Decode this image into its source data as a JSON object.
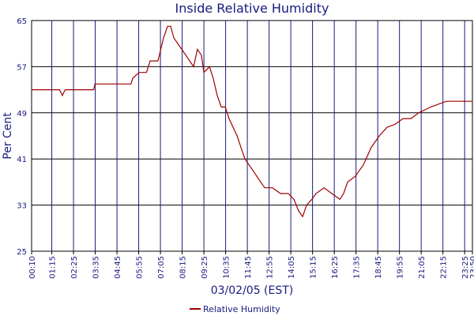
{
  "chart_data": {
    "type": "line",
    "title": "Inside Relative Humidity",
    "x_label": "03/02/05 (EST)",
    "y_label": "Per Cent",
    "x": [
      10,
      100,
      109,
      118,
      210,
      214,
      330,
      336,
      356,
      380,
      392,
      417,
      435,
      448,
      458,
      468,
      494,
      519,
      532,
      544,
      557,
      565,
      583,
      595,
      608,
      621,
      634,
      646,
      672,
      697,
      723,
      748,
      761,
      786,
      812,
      837,
      855,
      870,
      883,
      896,
      913,
      926,
      952,
      977,
      1003,
      1015,
      1028,
      1053,
      1079,
      1104,
      1130,
      1155,
      1181,
      1206,
      1232,
      1257,
      1295,
      1346,
      1430
    ],
    "series": [
      {
        "name": "Relative Humidity",
        "color": "#a00000",
        "values": [
          53,
          53,
          52,
          53,
          53,
          54,
          54,
          55,
          56,
          56,
          58,
          58,
          62,
          64,
          64,
          62,
          60,
          58,
          57,
          60,
          59,
          56,
          57,
          55,
          52,
          50,
          50,
          48,
          45,
          41,
          39,
          37,
          36,
          36,
          35,
          35,
          34,
          32,
          31,
          33,
          34,
          35,
          36,
          35,
          34,
          35,
          37,
          38,
          40,
          43,
          45,
          46.5,
          47,
          48,
          48,
          49,
          50,
          51,
          51
        ]
      }
    ],
    "xlim": [
      10,
      1430
    ],
    "xticks": [
      {
        "value": 10,
        "label": "00:10"
      },
      {
        "value": 75,
        "label": "01:15"
      },
      {
        "value": 145,
        "label": "02:25"
      },
      {
        "value": 215,
        "label": "03:35"
      },
      {
        "value": 285,
        "label": "04:45"
      },
      {
        "value": 355,
        "label": "05:55"
      },
      {
        "value": 425,
        "label": "07:05"
      },
      {
        "value": 495,
        "label": "08:15"
      },
      {
        "value": 565,
        "label": "09:25"
      },
      {
        "value": 635,
        "label": "10:35"
      },
      {
        "value": 705,
        "label": "11:45"
      },
      {
        "value": 775,
        "label": "12:55"
      },
      {
        "value": 845,
        "label": "14:05"
      },
      {
        "value": 915,
        "label": "15:15"
      },
      {
        "value": 985,
        "label": "16:25"
      },
      {
        "value": 1055,
        "label": "17:35"
      },
      {
        "value": 1125,
        "label": "18:45"
      },
      {
        "value": 1195,
        "label": "19:55"
      },
      {
        "value": 1265,
        "label": "21:05"
      },
      {
        "value": 1335,
        "label": "22:15"
      },
      {
        "value": 1405,
        "label": "23:25"
      },
      {
        "value": 1430,
        "label": "23:50"
      }
    ],
    "ylim": [
      25,
      65
    ],
    "yticks": [
      25,
      33,
      41,
      49,
      57,
      65
    ],
    "grid": true,
    "legend": "bottom"
  }
}
